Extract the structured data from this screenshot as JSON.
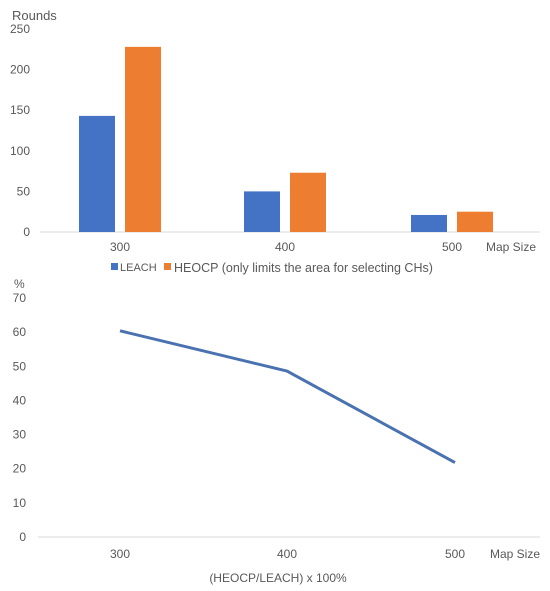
{
  "chart_data": [
    {
      "type": "bar",
      "ylabel": "Rounds",
      "xlabel": "Map Size",
      "categories": [
        "300",
        "400",
        "500"
      ],
      "ylim": [
        0,
        250
      ],
      "yticks": [
        "0",
        "50",
        "100",
        "150",
        "200",
        "250"
      ],
      "grid": false,
      "legend_position": "bottom",
      "series": [
        {
          "name": "LEACH",
          "values": [
            143,
            50,
            21
          ],
          "color": "#4472C4"
        },
        {
          "name": "HEOCP (only limits the area for selecting CHs)",
          "values": [
            228,
            73,
            25
          ],
          "color": "#ED7D31"
        }
      ]
    },
    {
      "type": "line",
      "ylabel": "%",
      "xlabel": "Map Size",
      "caption": "(HEOCP/LEACH) x 100%",
      "categories": [
        "300",
        "400",
        "500"
      ],
      "ylim": [
        0,
        70
      ],
      "yticks": [
        "0",
        "10",
        "20",
        "30",
        "40",
        "50",
        "60",
        "70"
      ],
      "grid": false,
      "series": [
        {
          "values": [
            60.4,
            48.6,
            21.8
          ],
          "color": "#4A72B0"
        }
      ]
    }
  ]
}
